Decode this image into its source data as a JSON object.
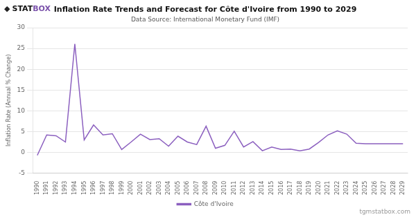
{
  "chart_data": {
    "type": "line",
    "title": "Inflation Rate Trends and Forecast for Côte d'Ivoire from 1990 to 2029",
    "subtitle": "Data Source: International Monetary Fund (IMF)",
    "ylabel": "Inflation Rate (Annual % Change)",
    "x": [
      1990,
      1991,
      1992,
      1993,
      1994,
      1995,
      1996,
      1997,
      1998,
      1999,
      2000,
      2001,
      2002,
      2003,
      2004,
      2005,
      2006,
      2007,
      2008,
      2009,
      2010,
      2011,
      2012,
      2013,
      2014,
      2015,
      2016,
      2017,
      2018,
      2019,
      2020,
      2021,
      2022,
      2023,
      2024,
      2025,
      2026,
      2027,
      2028,
      2029
    ],
    "series": [
      {
        "name": "Côte d'Ivoire",
        "color": "#8B5FBF",
        "values": [
          -0.7,
          4.2,
          4.0,
          2.5,
          26.1,
          3.0,
          6.6,
          4.2,
          4.5,
          0.7,
          2.5,
          4.4,
          3.1,
          3.3,
          1.5,
          3.9,
          2.5,
          1.9,
          6.3,
          1.0,
          1.7,
          5.1,
          1.3,
          2.6,
          0.4,
          1.3,
          0.7,
          0.8,
          0.4,
          0.8,
          2.4,
          4.2,
          5.2,
          4.4,
          2.2,
          2.1,
          2.1,
          2.1,
          2.1,
          2.1
        ]
      }
    ],
    "xlim": [
      1989.5,
      2029.5
    ],
    "xticks": [
      1990,
      1991,
      1992,
      1993,
      1994,
      1995,
      1996,
      1997,
      1998,
      1999,
      2000,
      2001,
      2002,
      2003,
      2004,
      2005,
      2006,
      2007,
      2008,
      2009,
      2010,
      2011,
      2012,
      2013,
      2014,
      2015,
      2016,
      2017,
      2018,
      2019,
      2020,
      2021,
      2022,
      2023,
      2024,
      2025,
      2026,
      2027,
      2028,
      2029
    ],
    "ylim": [
      -5,
      30
    ],
    "yticks": [
      -5,
      0,
      5,
      10,
      15,
      20,
      25,
      30
    ],
    "grid": true,
    "legend": "bottom",
    "annotations": [
      "◆",
      "STAT",
      "BOX",
      "tgmstatbox.com"
    ]
  }
}
